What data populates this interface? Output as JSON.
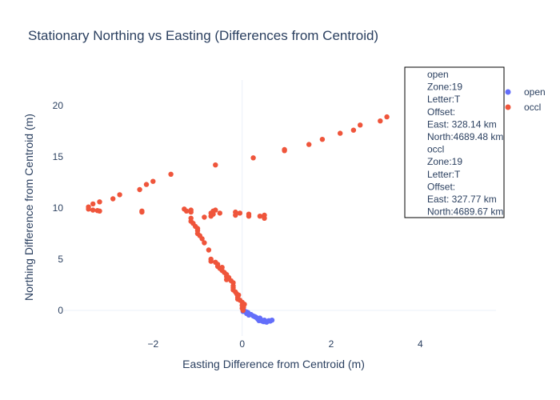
{
  "chart_data": {
    "type": "scatter",
    "title": "Stationary Northing vs Easting (Differences from Centroid)",
    "xlabel": "Easting Difference from Centroid (m)",
    "ylabel": "Northing Difference from Centroid (m)",
    "xlim": [
      -4.0,
      5.7
    ],
    "ylim": [
      -2.5,
      22.5
    ],
    "xticks": [
      -2,
      0,
      2,
      4
    ],
    "yticks": [
      0,
      5,
      10,
      15,
      20
    ],
    "grid": false,
    "legend_position": "right",
    "series": [
      {
        "name": "open",
        "color": "#636efa",
        "points": [
          [
            0.02,
            -0.1
          ],
          [
            0.05,
            -0.05
          ],
          [
            0.1,
            -0.3
          ],
          [
            0.13,
            -0.2
          ],
          [
            0.15,
            -0.45
          ],
          [
            0.2,
            -0.4
          ],
          [
            0.25,
            -0.55
          ],
          [
            0.28,
            -0.6
          ],
          [
            0.32,
            -0.7
          ],
          [
            0.35,
            -0.85
          ],
          [
            0.38,
            -1.0
          ],
          [
            0.4,
            -0.75
          ],
          [
            0.42,
            -0.9
          ],
          [
            0.45,
            -1.05
          ],
          [
            0.5,
            -0.95
          ],
          [
            0.52,
            -1.1
          ],
          [
            0.55,
            -1.15
          ],
          [
            0.6,
            -1.0
          ],
          [
            0.63,
            -1.05
          ],
          [
            0.67,
            -0.95
          ],
          [
            0.1,
            -0.15
          ],
          [
            0.3,
            -0.65
          ],
          [
            0.48,
            -1.1
          ],
          [
            0.58,
            -1.05
          ]
        ]
      },
      {
        "name": "occl",
        "color": "#ef553b",
        "points": [
          [
            -3.45,
            10.1
          ],
          [
            -3.45,
            9.9
          ],
          [
            -3.35,
            9.8
          ],
          [
            -3.35,
            10.4
          ],
          [
            -3.25,
            9.75
          ],
          [
            -3.2,
            9.7
          ],
          [
            -3.2,
            10.6
          ],
          [
            -2.9,
            10.9
          ],
          [
            -2.75,
            11.3
          ],
          [
            -2.3,
            11.8
          ],
          [
            -2.15,
            12.3
          ],
          [
            -2.0,
            12.6
          ],
          [
            -1.6,
            13.3
          ],
          [
            -2.25,
            9.7
          ],
          [
            -2.25,
            9.6
          ],
          [
            -0.6,
            14.2
          ],
          [
            0.25,
            14.9
          ],
          [
            0.95,
            15.6
          ],
          [
            0.95,
            15.7
          ],
          [
            1.5,
            16.2
          ],
          [
            1.8,
            16.7
          ],
          [
            2.2,
            17.3
          ],
          [
            2.5,
            17.6
          ],
          [
            2.65,
            18.1
          ],
          [
            3.1,
            18.5
          ],
          [
            3.25,
            18.9
          ],
          [
            3.8,
            19.3
          ],
          [
            4.1,
            19.5
          ],
          [
            4.55,
            19.6
          ],
          [
            4.75,
            19.45
          ],
          [
            -1.3,
            9.9
          ],
          [
            -1.25,
            9.7
          ],
          [
            -1.15,
            9.8
          ],
          [
            -1.15,
            9.6
          ],
          [
            -1.15,
            9.0
          ],
          [
            -1.15,
            8.7
          ],
          [
            -1.1,
            8.5
          ],
          [
            -1.05,
            8.2
          ],
          [
            -1.0,
            8.0
          ],
          [
            -1.0,
            7.8
          ],
          [
            -1.0,
            7.5
          ],
          [
            -0.95,
            7.3
          ],
          [
            -0.9,
            7.0
          ],
          [
            -0.85,
            6.6
          ],
          [
            -0.75,
            5.9
          ],
          [
            -0.85,
            9.1
          ],
          [
            -0.7,
            9.2
          ],
          [
            -0.7,
            9.5
          ],
          [
            -0.65,
            9.7
          ],
          [
            -0.65,
            9.4
          ],
          [
            -0.6,
            9.8
          ],
          [
            -0.5,
            9.5
          ],
          [
            -0.15,
            9.6
          ],
          [
            -0.15,
            9.3
          ],
          [
            -0.05,
            9.5
          ],
          [
            0.15,
            9.2
          ],
          [
            0.15,
            9.4
          ],
          [
            0.4,
            9.2
          ],
          [
            0.5,
            9.0
          ],
          [
            0.5,
            9.3
          ],
          [
            -0.7,
            5.0
          ],
          [
            -0.7,
            4.8
          ],
          [
            -0.6,
            4.7
          ],
          [
            -0.55,
            4.5
          ],
          [
            -0.55,
            4.3
          ],
          [
            -0.45,
            4.2
          ],
          [
            -0.45,
            3.9
          ],
          [
            -0.4,
            3.7
          ],
          [
            -0.35,
            3.5
          ],
          [
            -0.35,
            3.3
          ],
          [
            -0.35,
            3.0
          ],
          [
            -0.25,
            2.9
          ],
          [
            -0.2,
            2.7
          ],
          [
            -0.2,
            2.4
          ],
          [
            -0.2,
            2.2
          ],
          [
            -0.2,
            2.0
          ],
          [
            -0.15,
            1.8
          ],
          [
            -0.12,
            1.6
          ],
          [
            -0.1,
            1.3
          ],
          [
            -0.1,
            1.1
          ],
          [
            -0.05,
            1.0
          ],
          [
            0.0,
            0.8
          ],
          [
            0.0,
            0.5
          ],
          [
            0.0,
            0.2
          ],
          [
            0.02,
            0.0
          ],
          [
            0.05,
            0.6
          ],
          [
            0.03,
            0.3
          ],
          [
            -0.08,
            1.5
          ],
          [
            -0.3,
            3.2
          ],
          [
            -0.5,
            4.1
          ]
        ]
      }
    ],
    "annotation_lines": [
      "open",
      "Zone:19",
      "Letter:T",
      "Offset:",
      "East: 328.14 km",
      "North:4689.48 km",
      "occl",
      "Zone:19",
      "Letter:T",
      "Offset:",
      "East: 327.77 km",
      "North:4689.67 km"
    ]
  }
}
